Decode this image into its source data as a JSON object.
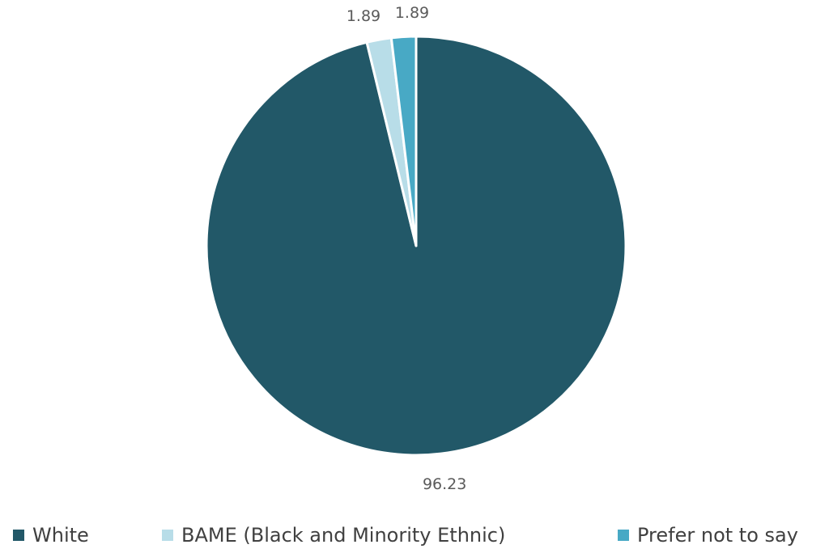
{
  "chart_data": {
    "type": "pie",
    "title": "",
    "categories": [
      "White",
      "BAME (Black and Minority Ethnic)",
      "Prefer not to say"
    ],
    "values": [
      96.23,
      1.89,
      1.89
    ],
    "data_labels": [
      "96.23",
      "1.89",
      "1.89"
    ],
    "colors": [
      "#225868",
      "#b8dde8",
      "#48a9c5"
    ],
    "start_angle_deg": 0,
    "direction": "clockwise",
    "legend_position": "bottom"
  },
  "legend": {
    "items": [
      {
        "label": "White",
        "color": "#225868"
      },
      {
        "label": "BAME (Black and Minority Ethnic)",
        "color": "#b8dde8"
      },
      {
        "label": "Prefer not to say",
        "color": "#48a9c5"
      }
    ]
  }
}
